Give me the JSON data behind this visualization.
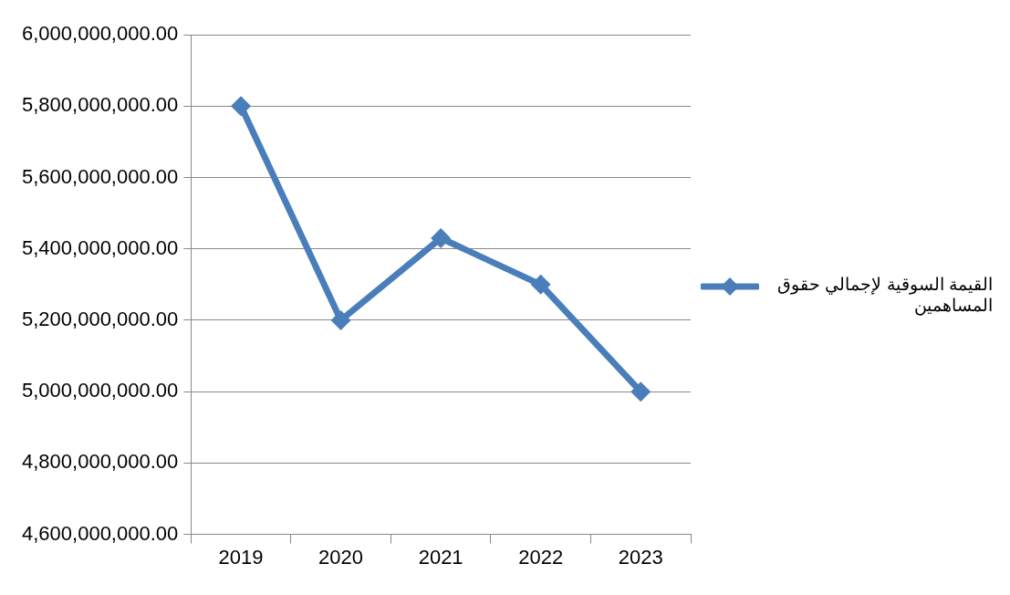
{
  "chart_data": {
    "type": "line",
    "categories": [
      "2019",
      "2020",
      "2021",
      "2022",
      "2023"
    ],
    "series": [
      {
        "name": "القيمة السوقية لإجمالي حقوق المساهمين",
        "color": "#4a7ebb",
        "values": [
          5800000000,
          5200000000,
          5430000000,
          5300000000,
          5000000000
        ]
      }
    ],
    "ylim": [
      4600000000,
      6000000000
    ],
    "yticks": [
      {
        "value": 4600000000,
        "label": "4,600,000,000.00"
      },
      {
        "value": 4800000000,
        "label": "4,800,000,000.00"
      },
      {
        "value": 5000000000,
        "label": "5,000,000,000.00"
      },
      {
        "value": 5200000000,
        "label": "5,200,000,000.00"
      },
      {
        "value": 5400000000,
        "label": "5,400,000,000.00"
      },
      {
        "value": 5600000000,
        "label": "5,600,000,000.00"
      },
      {
        "value": 5800000000,
        "label": "5,800,000,000.00"
      },
      {
        "value": 6000000000,
        "label": "6,000,000,000.00"
      }
    ],
    "grid": "y",
    "legend": "right",
    "marker": "diamond",
    "line_style": "solid"
  }
}
